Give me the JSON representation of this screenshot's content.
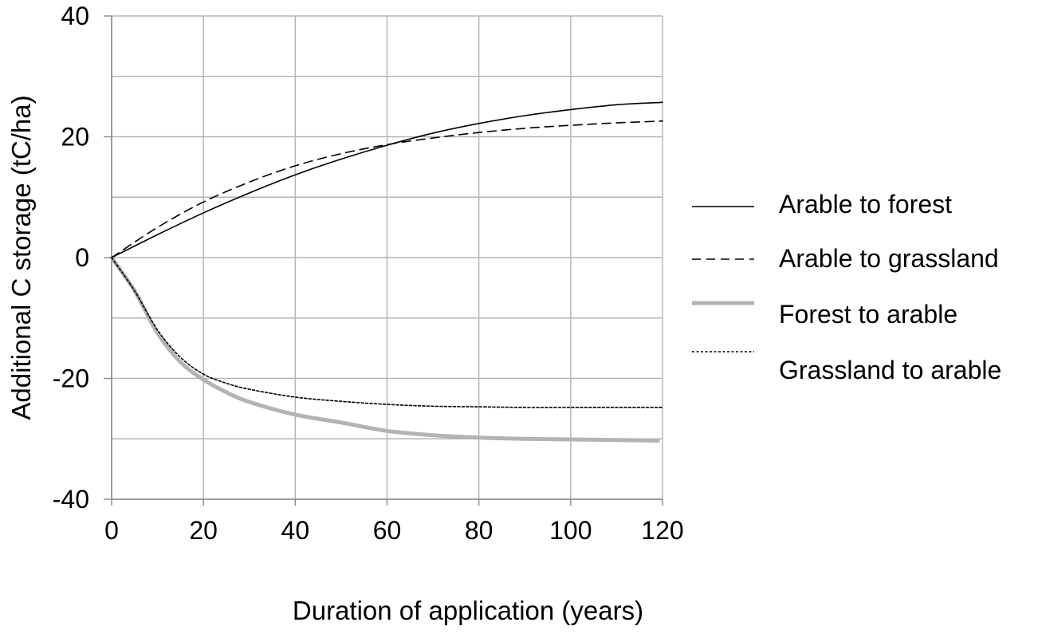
{
  "chart_data": {
    "type": "line",
    "title": "",
    "xlabel": "Duration of application (years)",
    "ylabel": "Additional C storage (tC/ha)",
    "xlim": [
      0,
      120
    ],
    "ylim": [
      -40,
      40
    ],
    "x_ticks": [
      0,
      20,
      40,
      60,
      80,
      100,
      120
    ],
    "y_ticks": [
      -40,
      -20,
      0,
      20,
      40
    ],
    "x_tick_labels": [
      "0",
      "20",
      "40",
      "60",
      "80",
      "100",
      "120"
    ],
    "y_tick_labels": [
      "-40",
      "-20",
      "0",
      "20",
      "40"
    ],
    "x_grid": [
      0,
      20,
      40,
      60,
      80,
      100,
      120
    ],
    "y_grid": [
      -40,
      -30,
      -20,
      -10,
      0,
      10,
      20,
      30,
      40
    ],
    "grid": true,
    "legend_position": "right",
    "series": [
      {
        "name": "Arable to forest",
        "color": "#000000",
        "line_style": "solid",
        "x": [
          0,
          10,
          20,
          30,
          40,
          50,
          60,
          70,
          80,
          90,
          100,
          110,
          120
        ],
        "y": [
          0,
          3.8,
          7.4,
          10.7,
          13.7,
          16.3,
          18.6,
          20.6,
          22.2,
          23.5,
          24.5,
          25.3,
          25.7
        ]
      },
      {
        "name": "Arable to grassland",
        "color": "#000000",
        "line_style": "dashed",
        "x": [
          0,
          10,
          20,
          30,
          40,
          50,
          60,
          70,
          80,
          90,
          100,
          110,
          120
        ],
        "y": [
          0,
          5.0,
          9.2,
          12.5,
          15.2,
          17.2,
          18.7,
          19.8,
          20.7,
          21.4,
          21.9,
          22.3,
          22.6
        ]
      },
      {
        "name": "Forest to arable",
        "color": "#b3b3b3",
        "line_style": "thick",
        "x": [
          0,
          5,
          10,
          15,
          20,
          25,
          30,
          40,
          50,
          60,
          70,
          80,
          90,
          100,
          110,
          119
        ],
        "y": [
          0,
          -5.5,
          -12.5,
          -17.3,
          -20.2,
          -22.3,
          -23.9,
          -26.0,
          -27.3,
          -28.7,
          -29.4,
          -29.8,
          -30.0,
          -30.1,
          -30.2,
          -30.3
        ]
      },
      {
        "name": "Grassland to arable",
        "color": "#000000",
        "line_style": "dotted",
        "x": [
          0,
          5,
          10,
          15,
          20,
          25,
          30,
          40,
          50,
          60,
          70,
          80,
          90,
          100,
          110,
          120
        ],
        "y": [
          0,
          -5.5,
          -12.0,
          -16.5,
          -19.3,
          -20.8,
          -21.8,
          -23.1,
          -23.8,
          -24.3,
          -24.6,
          -24.7,
          -24.8,
          -24.8,
          -24.8,
          -24.8
        ]
      }
    ]
  }
}
